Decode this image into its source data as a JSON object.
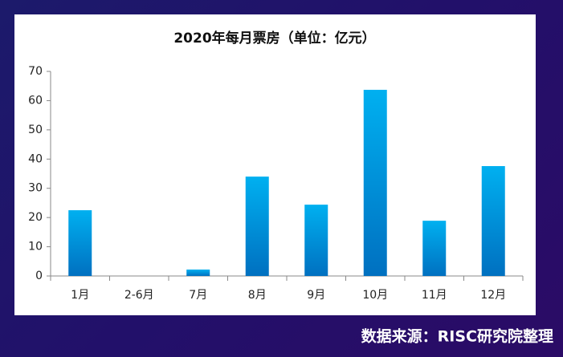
{
  "chart_data": {
    "type": "bar",
    "title": "2020年每月票房（单位：亿元）",
    "categories": [
      "1月",
      "2-6月",
      "7月",
      "8月",
      "9月",
      "10月",
      "11月",
      "12月"
    ],
    "values": [
      22.5,
      0,
      2.2,
      34,
      24.4,
      63.7,
      18.9,
      37.6
    ],
    "color": "#00b0f0",
    "ylim": [
      0,
      70
    ],
    "yticks": [
      0,
      10,
      20,
      30,
      40,
      50,
      60,
      70
    ],
    "grid": false,
    "source": "数据来源：RISC研究院整理"
  }
}
